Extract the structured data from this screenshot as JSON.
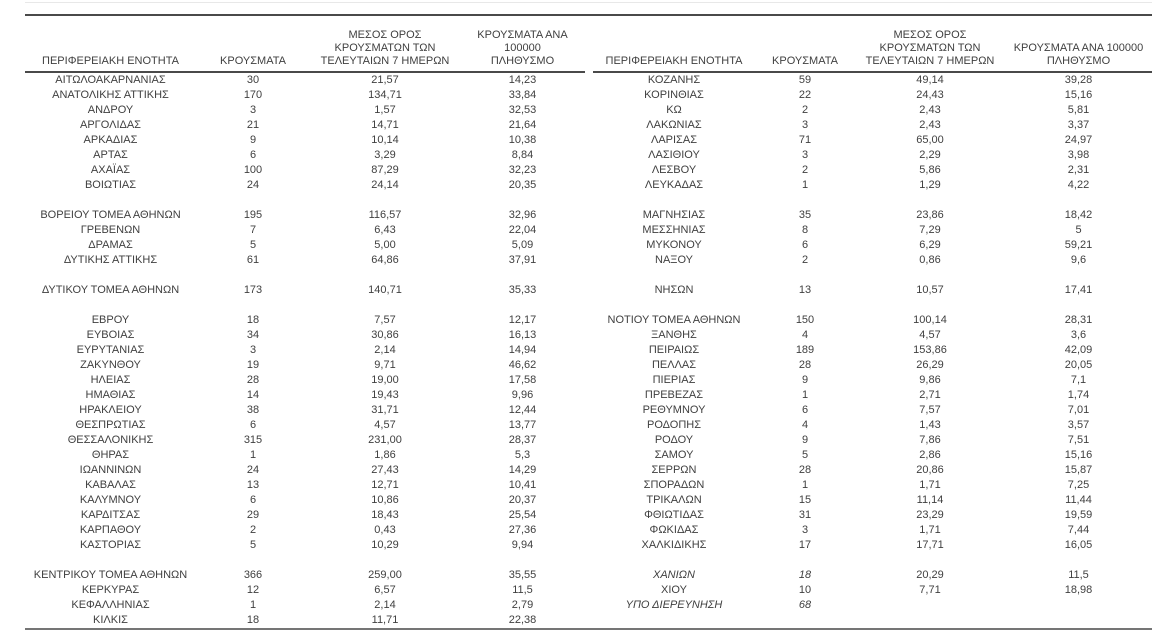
{
  "colors": {
    "text": "#404040",
    "border_dark": "#4a4a4a",
    "border_bottom_gray": "#757575",
    "faint_top_line": "#e8e8e8"
  },
  "column_headers": [
    {
      "key": "region",
      "lines": [
        "ΠΕΡΙΦΕΡΕΙΑΚΗ ΕΝΟΤΗΤΑ"
      ]
    },
    {
      "key": "cases",
      "lines": [
        "ΚΡΟΥΣΜΑΤΑ"
      ]
    },
    {
      "key": "avg_7day",
      "lines": [
        "ΜΕΣΟΣ ΟΡΟΣ",
        "ΚΡΟΥΣΜΑΤΩΝ ΤΩΝ",
        "ΤΕΛΕΥΤΑΙΩΝ 7 ΗΜΕΡΩΝ"
      ]
    },
    {
      "key": "per_100k",
      "lines": [
        "ΚΡΟΥΣΜΑΤΑ ΑΝΑ 100000",
        "ΠΛΗΘΥΣΜΟ"
      ]
    }
  ],
  "tables": [
    {
      "id": "left",
      "rows": [
        [
          "ΑΙΤΩΛΟΑΚΑΡΝΑΝΙΑΣ",
          "30",
          "21,57",
          "14,23"
        ],
        [
          "ΑΝΑΤΟΛΙΚΗΣ ΑΤΤΙΚΗΣ",
          "170",
          "134,71",
          "33,84"
        ],
        [
          "ΑΝΔΡΟΥ",
          "3",
          "1,57",
          "32,53"
        ],
        [
          "ΑΡΓΟΛΙΔΑΣ",
          "21",
          "14,71",
          "21,64"
        ],
        [
          "ΑΡΚΑΔΙΑΣ",
          "9",
          "10,14",
          "10,38"
        ],
        [
          "ΑΡΤΑΣ",
          "6",
          "3,29",
          "8,84"
        ],
        [
          "ΑΧΑΪΑΣ",
          "100",
          "87,29",
          "32,23"
        ],
        [
          "ΒΟΙΩΤΙΑΣ",
          "24",
          "24,14",
          "20,35"
        ],
        null,
        [
          "ΒΟΡΕΙΟΥ ΤΟΜΕΑ ΑΘΗΝΩΝ",
          "195",
          "116,57",
          "32,96"
        ],
        [
          "ΓΡΕΒΕΝΩΝ",
          "7",
          "6,43",
          "22,04"
        ],
        [
          "ΔΡΑΜΑΣ",
          "5",
          "5,00",
          "5,09"
        ],
        [
          "ΔΥΤΙΚΗΣ ΑΤΤΙΚΗΣ",
          "61",
          "64,86",
          "37,91"
        ],
        null,
        [
          "ΔΥΤΙΚΟΥ ΤΟΜΕΑ ΑΘΗΝΩΝ",
          "173",
          "140,71",
          "35,33"
        ],
        null,
        [
          "ΕΒΡΟΥ",
          "18",
          "7,57",
          "12,17"
        ],
        [
          "ΕΥΒΟΙΑΣ",
          "34",
          "30,86",
          "16,13"
        ],
        [
          "ΕΥΡΥΤΑΝΙΑΣ",
          "3",
          "2,14",
          "14,94"
        ],
        [
          "ΖΑΚΥΝΘΟΥ",
          "19",
          "9,71",
          "46,62"
        ],
        [
          "ΗΛΕΙΑΣ",
          "28",
          "19,00",
          "17,58"
        ],
        [
          "ΗΜΑΘΙΑΣ",
          "14",
          "19,43",
          "9,96"
        ],
        [
          "ΗΡΑΚΛΕΙΟΥ",
          "38",
          "31,71",
          "12,44"
        ],
        [
          "ΘΕΣΠΡΩΤΙΑΣ",
          "6",
          "4,57",
          "13,77"
        ],
        [
          "ΘΕΣΣΑΛΟΝΙΚΗΣ",
          "315",
          "231,00",
          "28,37"
        ],
        [
          "ΘΗΡΑΣ",
          "1",
          "1,86",
          "5,3"
        ],
        [
          "ΙΩΑΝΝΙΝΩΝ",
          "24",
          "27,43",
          "14,29"
        ],
        [
          "ΚΑΒΑΛΑΣ",
          "13",
          "12,71",
          "10,41"
        ],
        [
          "ΚΑΛΥΜΝΟΥ",
          "6",
          "10,86",
          "20,37"
        ],
        [
          "ΚΑΡΔΙΤΣΑΣ",
          "29",
          "18,43",
          "25,54"
        ],
        [
          "ΚΑΡΠΑΘΟΥ",
          "2",
          "0,43",
          "27,36"
        ],
        [
          "ΚΑΣΤΟΡΙΑΣ",
          "5",
          "10,29",
          "9,94"
        ],
        null,
        [
          "ΚΕΝΤΡΙΚΟΥ ΤΟΜΕΑ ΑΘΗΝΩΝ",
          "366",
          "259,00",
          "35,55"
        ],
        [
          "ΚΕΡΚΥΡΑΣ",
          "12",
          "6,57",
          "11,5"
        ],
        [
          "ΚΕΦΑΛΛΗΝΙΑΣ",
          "1",
          "2,14",
          "2,79"
        ],
        [
          "ΚΙΛΚΙΣ",
          "18",
          "11,71",
          "22,38"
        ]
      ]
    },
    {
      "id": "right",
      "rows": [
        [
          "ΚΟΖΑΝΗΣ",
          "59",
          "49,14",
          "39,28"
        ],
        [
          "ΚΟΡΙΝΘΙΑΣ",
          "22",
          "24,43",
          "15,16"
        ],
        [
          "ΚΩ",
          "2",
          "2,43",
          "5,81"
        ],
        [
          "ΛΑΚΩΝΙΑΣ",
          "3",
          "2,43",
          "3,37"
        ],
        [
          "ΛΑΡΙΣΑΣ",
          "71",
          "65,00",
          "24,97"
        ],
        [
          "ΛΑΣΙΘΙΟΥ",
          "3",
          "2,29",
          "3,98"
        ],
        [
          "ΛΕΣΒΟΥ",
          "2",
          "5,86",
          "2,31"
        ],
        [
          "ΛΕΥΚΑΔΑΣ",
          "1",
          "1,29",
          "4,22"
        ],
        null,
        [
          "ΜΑΓΝΗΣΙΑΣ",
          "35",
          "23,86",
          "18,42"
        ],
        [
          "ΜΕΣΣΗΝΙΑΣ",
          "8",
          "7,29",
          "5"
        ],
        [
          "ΜΥΚΟΝΟΥ",
          "6",
          "6,29",
          "59,21"
        ],
        [
          "ΝΑΞΟΥ",
          "2",
          "0,86",
          "9,6"
        ],
        null,
        [
          "ΝΗΣΩΝ",
          "13",
          "10,57",
          "17,41"
        ],
        null,
        [
          "ΝΟΤΙΟΥ ΤΟΜΕΑ ΑΘΗΝΩΝ",
          "150",
          "100,14",
          "28,31"
        ],
        [
          "ΞΑΝΘΗΣ",
          "4",
          "4,57",
          "3,6"
        ],
        [
          "ΠΕΙΡΑΙΩΣ",
          "189",
          "153,86",
          "42,09"
        ],
        [
          "ΠΕΛΛΑΣ",
          "28",
          "26,29",
          "20,05"
        ],
        [
          "ΠΙΕΡΙΑΣ",
          "9",
          "9,86",
          "7,1"
        ],
        [
          "ΠΡΕΒΕΖΑΣ",
          "1",
          "2,71",
          "1,74"
        ],
        [
          "ΡΕΘΥΜΝΟΥ",
          "6",
          "7,57",
          "7,01"
        ],
        [
          "ΡΟΔΟΠΗΣ",
          "4",
          "1,43",
          "3,57"
        ],
        [
          "ΡΟΔΟΥ",
          "9",
          "7,86",
          "7,51"
        ],
        [
          "ΣΑΜΟΥ",
          "5",
          "2,86",
          "15,16"
        ],
        [
          "ΣΕΡΡΩΝ",
          "28",
          "20,86",
          "15,87"
        ],
        [
          "ΣΠΟΡΑΔΩΝ",
          "1",
          "1,71",
          "7,25"
        ],
        [
          "ΤΡΙΚΑΛΩΝ",
          "15",
          "11,14",
          "11,44"
        ],
        [
          "ΦΘΙΩΤΙΔΑΣ",
          "31",
          "23,29",
          "19,59"
        ],
        [
          "ΦΩΚΙΔΑΣ",
          "3",
          "1,71",
          "7,44"
        ],
        [
          "ΧΑΛΚΙΔΙΚΗΣ",
          "17",
          "17,71",
          "16,05"
        ],
        null,
        [
          "ΧΑΝΙΩΝ",
          "18",
          "20,29",
          "11,5",
          "italic"
        ],
        [
          "ΧΙΟΥ",
          "10",
          "7,71",
          "18,98"
        ],
        [
          "ΥΠΟ ΔΙΕΡΕΥΝΗΣΗ",
          "68",
          "",
          "",
          "italic"
        ],
        null
      ]
    }
  ]
}
